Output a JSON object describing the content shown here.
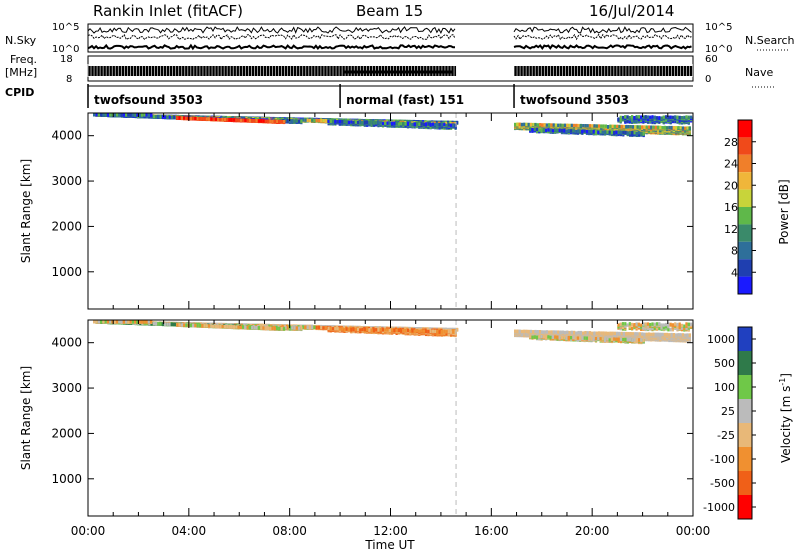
{
  "header": {
    "station": "Rankin Inlet (fitACF)",
    "beam": "Beam 15",
    "date": "16/Jul/2014"
  },
  "left_labels": {
    "nsky": "N.Sky",
    "freq": "Freq.",
    "freq_unit": "[MHz]",
    "cpid": "CPID"
  },
  "right_labels": {
    "nsearch": "N.Search",
    "nave": "Nave"
  },
  "side_ticks": {
    "noise_left": [
      "10^5",
      "10^0"
    ],
    "noise_right": [
      "10^5",
      "10^0"
    ],
    "freq_left": [
      "18",
      "8"
    ],
    "freq_right": [
      "60",
      "0"
    ]
  },
  "cpid_segments": [
    {
      "label": "twofsound 3503",
      "start_hour": 0.0,
      "end_hour": 10.0
    },
    {
      "label": "normal (fast) 151",
      "start_hour": 10.0,
      "end_hour": 14.6
    },
    {
      "label": "twofsound 3503",
      "start_hour": 16.9,
      "end_hour": 24.0
    }
  ],
  "colors": {
    "power": [
      "#1a1aff",
      "#1f3fb0",
      "#2e6f9a",
      "#3a8a6a",
      "#5fb84a",
      "#c8d43a",
      "#f0b63a",
      "#f07f2a",
      "#f04a1a",
      "#ff0000"
    ],
    "velocity": [
      "#2040c0",
      "#2f7a4a",
      "#6fc848",
      "#bbbbbb",
      "#e8b878",
      "#f09030",
      "#f06018",
      "#ff0000"
    ]
  },
  "chart_data": [
    {
      "type": "line",
      "name": "noise-panel",
      "xlim": [
        0,
        24
      ],
      "series": [
        {
          "name": "N.Sky",
          "ylim_log10": [
            0,
            5
          ]
        },
        {
          "name": "N.Search",
          "ylim_log10": [
            0,
            5
          ]
        }
      ]
    },
    {
      "type": "line",
      "name": "freq-nave-panel",
      "xlim": [
        0,
        24
      ],
      "series": [
        {
          "name": "Freq.",
          "unit": "MHz",
          "ylim": [
            8,
            18
          ],
          "value_approx": 11
        },
        {
          "name": "Nave",
          "ylim": [
            0,
            60
          ]
        }
      ]
    },
    {
      "type": "heatmap",
      "name": "power-panel",
      "xlabel": "",
      "ylabel": "Slant Range [km]",
      "xlim": [
        0,
        24
      ],
      "ylim": [
        180,
        4500
      ],
      "x_ticks": [],
      "y_ticks": [
        "1000",
        "2000",
        "3000",
        "4000"
      ],
      "colorbar": {
        "label": "Power [dB]",
        "ticks": [
          "4",
          "8",
          "12",
          "16",
          "20",
          "24",
          "28"
        ],
        "range": [
          0,
          30
        ]
      },
      "data_gaps_hours": [
        [
          14.6,
          16.9
        ]
      ]
    },
    {
      "type": "heatmap",
      "name": "velocity-panel",
      "xlabel": "Time UT",
      "ylabel": "Slant Range [km]",
      "xlim": [
        0,
        24
      ],
      "ylim": [
        180,
        4500
      ],
      "x_ticks": [
        "00:00",
        "04:00",
        "08:00",
        "12:00",
        "16:00",
        "20:00",
        "00:00"
      ],
      "y_ticks": [
        "1000",
        "2000",
        "3000",
        "4000"
      ],
      "colorbar": {
        "label": "Velocity [m s",
        "label_superscript": "-1",
        "label_end": "]",
        "ticks": [
          "1000",
          "500",
          "100",
          "25",
          "-25",
          "-100",
          "-500",
          "-1000"
        ]
      },
      "data_gaps_hours": [
        [
          14.6,
          16.9
        ]
      ]
    }
  ]
}
